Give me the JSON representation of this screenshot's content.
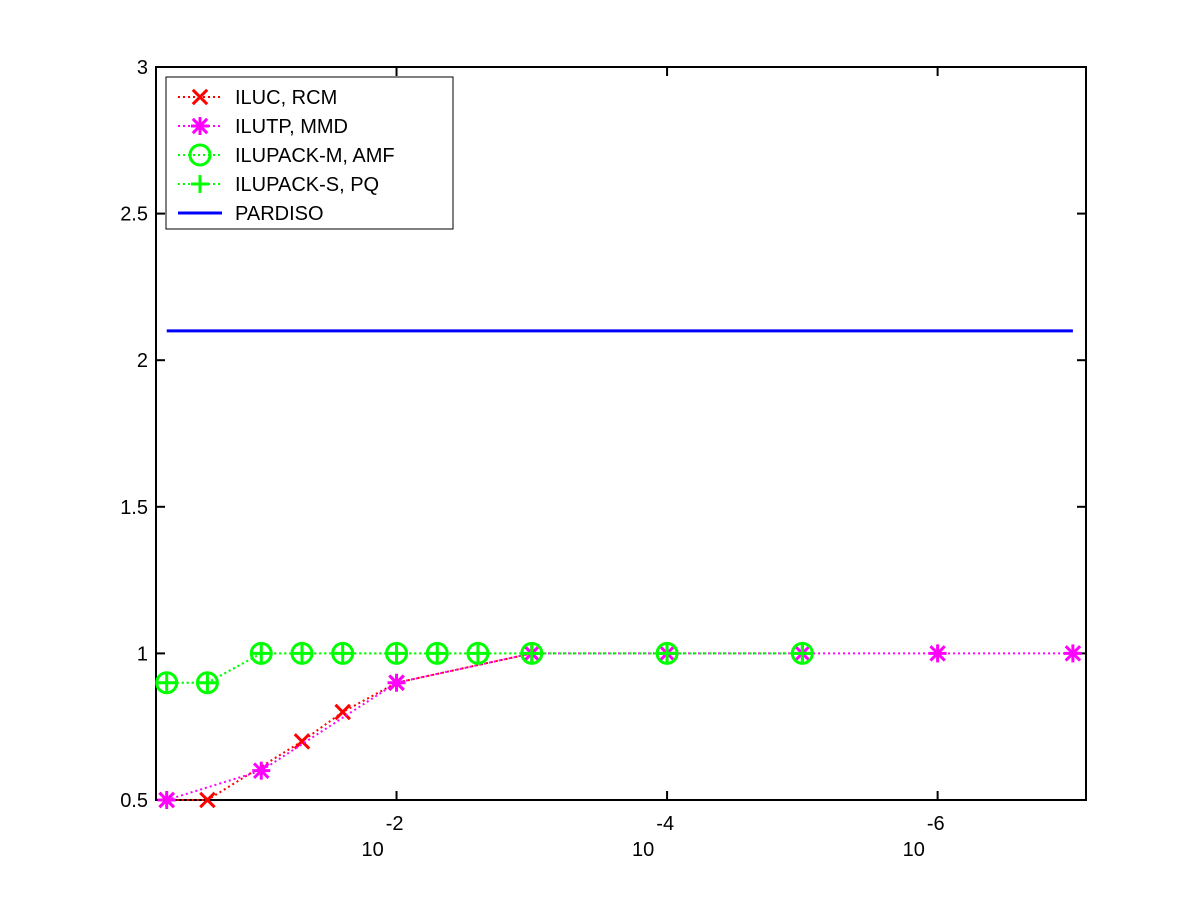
{
  "chart_data": {
    "type": "line",
    "xscale": "log",
    "grid": false,
    "legend": "northwest",
    "xlim": [
      0.6,
      8e-08
    ],
    "ylim": [
      0.5,
      3
    ],
    "xticks": [
      {
        "value": 0.01,
        "label": "10^-2"
      },
      {
        "value": 0.0001,
        "label": "10^-4"
      },
      {
        "value": 1e-06,
        "label": "10^-6"
      }
    ],
    "yticks": [
      0.5,
      1,
      1.5,
      2,
      2.5,
      3
    ],
    "series": [
      {
        "name": "ILUC, RCM",
        "color": "#ff0000",
        "marker": "x",
        "linestyle": "dotted",
        "x": [
          0.5,
          0.25,
          0.05,
          0.025,
          0.01,
          0.001
        ],
        "values": [
          0.5,
          0.5,
          0.7,
          0.8,
          0.9,
          1
        ]
      },
      {
        "name": "ILUTP, MMD",
        "color": "#ff00ff",
        "marker": "star",
        "linestyle": "dotted",
        "x": [
          0.5,
          0.1,
          0.01,
          0.001,
          0.0001,
          1e-05,
          1e-06,
          1e-07
        ],
        "values": [
          0.5,
          0.6,
          0.9,
          1,
          1,
          1,
          1,
          1
        ]
      },
      {
        "name": "ILUPACK-M, AMF",
        "color": "#00ff00",
        "marker": "circle",
        "linestyle": "dotted",
        "x": [
          0.5,
          0.25,
          0.1,
          0.05,
          0.025,
          0.01,
          0.005,
          0.0025,
          0.001,
          0.0001,
          1e-05
        ],
        "values": [
          0.9,
          0.9,
          1,
          1,
          1,
          1,
          1,
          1,
          1,
          1,
          1
        ]
      },
      {
        "name": "ILUPACK-S, PQ",
        "color": "#00ff00",
        "marker": "plus",
        "linestyle": "dotted",
        "x": [
          0.5,
          0.25,
          0.1,
          0.05,
          0.025,
          0.01,
          0.005,
          0.0025,
          0.001,
          0.0001,
          1e-05
        ],
        "values": [
          0.9,
          0.9,
          1,
          1,
          1,
          1,
          1,
          1,
          1,
          1,
          1
        ]
      },
      {
        "name": "PARDISO",
        "color": "#0000ff",
        "marker": "none",
        "linestyle": "solid",
        "x": [
          0.5,
          1e-07
        ],
        "values": [
          2.1,
          2.1
        ]
      }
    ]
  }
}
